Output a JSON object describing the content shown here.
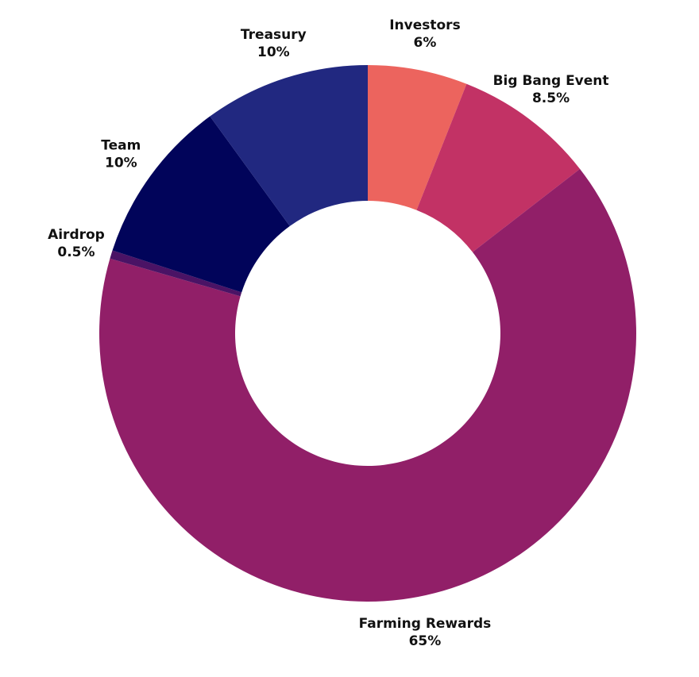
{
  "chart_data": {
    "type": "pie",
    "donut": true,
    "title": "",
    "legend": "none",
    "slices": [
      {
        "label": "Investors",
        "value": 6,
        "value_label": "6%",
        "color": "#EC645E"
      },
      {
        "label": "Big Bang Event",
        "value": 8.5,
        "value_label": "8.5%",
        "color": "#C23265"
      },
      {
        "label": "Farming Rewards",
        "value": 65,
        "value_label": "65%",
        "color": "#911F68"
      },
      {
        "label": "Airdrop",
        "value": 0.5,
        "value_label": "0.5%",
        "color": "#4A1365"
      },
      {
        "label": "Team",
        "value": 10,
        "value_label": "10%",
        "color": "#01045A"
      },
      {
        "label": "Treasury",
        "value": 10,
        "value_label": "10%",
        "color": "#212880"
      }
    ]
  }
}
